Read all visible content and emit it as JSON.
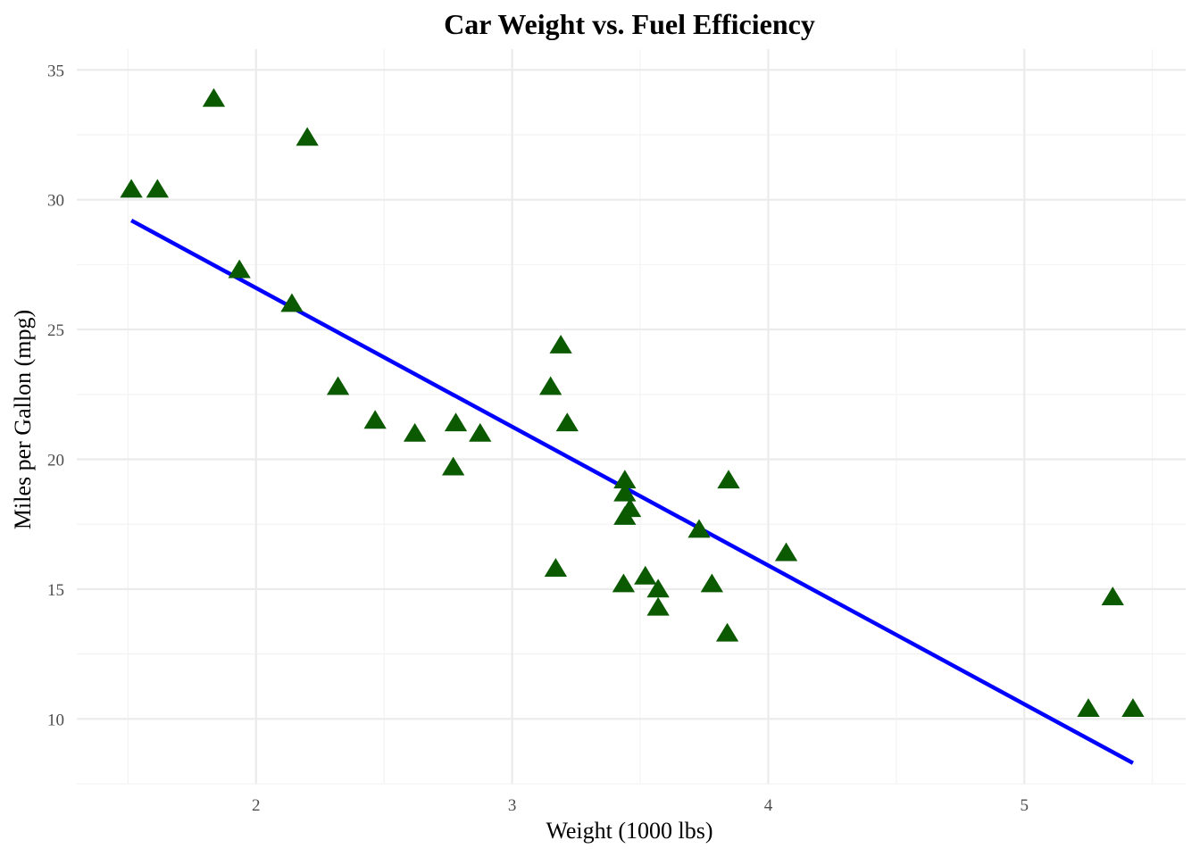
{
  "chart_data": {
    "type": "scatter",
    "title": "Car Weight vs. Fuel Efficiency",
    "xlabel": "Weight (1000 lbs)",
    "ylabel": "Miles per Gallon (mpg)",
    "xlim": [
      1.3,
      5.63
    ],
    "ylim": [
      7.5,
      35.8
    ],
    "x_ticks": [
      2,
      3,
      4,
      5
    ],
    "y_ticks": [
      10,
      15,
      20,
      25,
      30,
      35
    ],
    "x_tick_labels": [
      "2",
      "3",
      "4",
      "5"
    ],
    "y_tick_labels": [
      "10",
      "15",
      "20",
      "25",
      "30",
      "35"
    ],
    "grid": true,
    "marker": "triangle",
    "marker_color": "#0b5a00",
    "line_color": "#0000ff",
    "points": [
      {
        "x": 2.62,
        "y": 21.0
      },
      {
        "x": 2.875,
        "y": 21.0
      },
      {
        "x": 2.32,
        "y": 22.8
      },
      {
        "x": 3.215,
        "y": 21.4
      },
      {
        "x": 3.44,
        "y": 18.7
      },
      {
        "x": 3.46,
        "y": 18.1
      },
      {
        "x": 3.57,
        "y": 14.3
      },
      {
        "x": 3.19,
        "y": 24.4
      },
      {
        "x": 3.15,
        "y": 22.8
      },
      {
        "x": 3.44,
        "y": 19.2
      },
      {
        "x": 3.44,
        "y": 17.8
      },
      {
        "x": 4.07,
        "y": 16.4
      },
      {
        "x": 3.73,
        "y": 17.3
      },
      {
        "x": 3.78,
        "y": 15.2
      },
      {
        "x": 5.25,
        "y": 10.4
      },
      {
        "x": 5.424,
        "y": 10.4
      },
      {
        "x": 5.345,
        "y": 14.7
      },
      {
        "x": 2.2,
        "y": 32.4
      },
      {
        "x": 1.615,
        "y": 30.4
      },
      {
        "x": 1.835,
        "y": 33.9
      },
      {
        "x": 2.465,
        "y": 21.5
      },
      {
        "x": 3.52,
        "y": 15.5
      },
      {
        "x": 3.435,
        "y": 15.2
      },
      {
        "x": 3.84,
        "y": 13.3
      },
      {
        "x": 3.845,
        "y": 19.2
      },
      {
        "x": 1.935,
        "y": 27.3
      },
      {
        "x": 2.14,
        "y": 26.0
      },
      {
        "x": 1.513,
        "y": 30.4
      },
      {
        "x": 3.17,
        "y": 15.8
      },
      {
        "x": 2.77,
        "y": 19.7
      },
      {
        "x": 3.57,
        "y": 15.0
      },
      {
        "x": 2.78,
        "y": 21.4
      }
    ],
    "fit_line": {
      "x": [
        1.513,
        5.424
      ],
      "y": [
        29.2,
        8.3
      ]
    }
  }
}
